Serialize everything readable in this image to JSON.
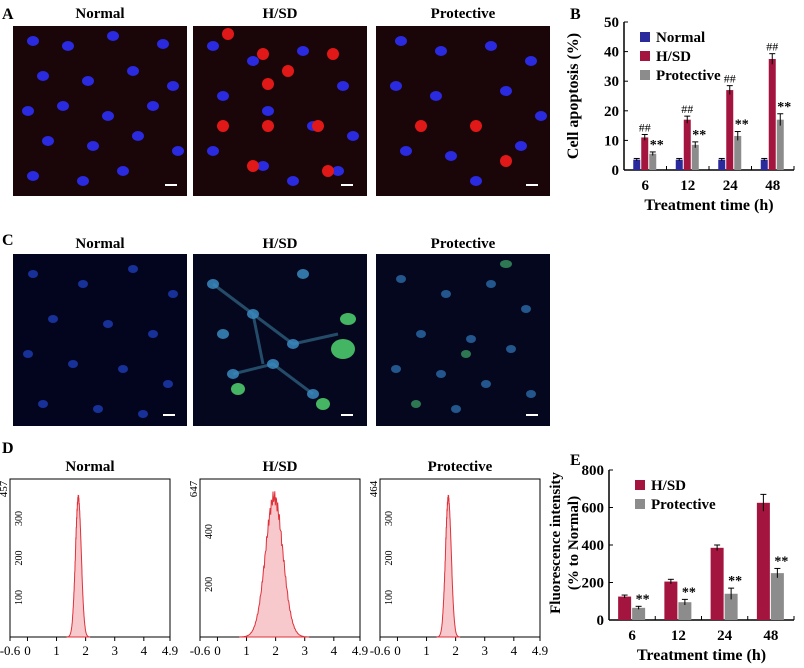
{
  "panel_letters": {
    "a": "A",
    "b": "B",
    "c": "C",
    "d": "D",
    "e": "E"
  },
  "panel_a": {
    "titles": [
      "Normal",
      "H/SD",
      "Protective"
    ]
  },
  "panel_c": {
    "titles": [
      "Normal",
      "H/SD",
      "Protective"
    ]
  },
  "panel_d": {
    "titles": [
      "Normal",
      "H/SD",
      "Protective"
    ],
    "x_ticks": [
      "-0.6",
      "0",
      "1",
      "2",
      "3",
      "4",
      "4.9"
    ],
    "y_max_labels": [
      "457",
      "647",
      "464"
    ],
    "y_mid_ticks": [
      [
        "300",
        "200",
        "100"
      ],
      [
        "400",
        "200"
      ],
      [
        "300",
        "200",
        "100"
      ]
    ],
    "peak_centers": [
      1.75,
      1.95,
      1.75
    ],
    "peak_widths": [
      0.1,
      0.3,
      0.1
    ]
  },
  "chart_data": [
    {
      "type": "bar",
      "panel": "B",
      "categories": [
        "6",
        "12",
        "24",
        "48"
      ],
      "series": [
        {
          "name": "Normal",
          "color": "#2b2a9c",
          "values": [
            3.5,
            3.5,
            3.5,
            3.5
          ],
          "errors": [
            0.4,
            0.4,
            0.4,
            0.4
          ]
        },
        {
          "name": "H/SD",
          "color": "#a3153f",
          "values": [
            11,
            17,
            27,
            37.5
          ],
          "errors": [
            1.0,
            1.2,
            1.5,
            1.8
          ]
        },
        {
          "name": "Protective",
          "color": "#8c8c8c",
          "values": [
            5.5,
            8.5,
            11.5,
            17
          ],
          "errors": [
            0.6,
            1.0,
            1.5,
            2.0
          ]
        }
      ],
      "annotations": {
        "H/SD": "##",
        "Protective": "**"
      },
      "xlabel": "Treatment time (h)",
      "ylabel": "Cell apoptosis (%)",
      "ylim": [
        0,
        50
      ],
      "yticks": [
        "0",
        "10",
        "20",
        "30",
        "40",
        "50"
      ]
    },
    {
      "type": "bar",
      "panel": "E",
      "categories": [
        "6",
        "12",
        "24",
        "48"
      ],
      "series": [
        {
          "name": "H/SD",
          "color": "#a3153f",
          "values": [
            125,
            205,
            385,
            625
          ],
          "errors": [
            8,
            12,
            15,
            45
          ]
        },
        {
          "name": "Protective",
          "color": "#8c8c8c",
          "values": [
            65,
            95,
            140,
            250
          ],
          "errors": [
            8,
            15,
            30,
            25
          ]
        }
      ],
      "annotations": {
        "Protective": "**"
      },
      "xlabel": "Treatment time (h)",
      "ylabel_line1": "Fluorescence intensity",
      "ylabel_line2": "(% to Normal)",
      "ylim": [
        0,
        800
      ],
      "yticks": [
        "0",
        "200",
        "400",
        "600",
        "800"
      ]
    }
  ]
}
